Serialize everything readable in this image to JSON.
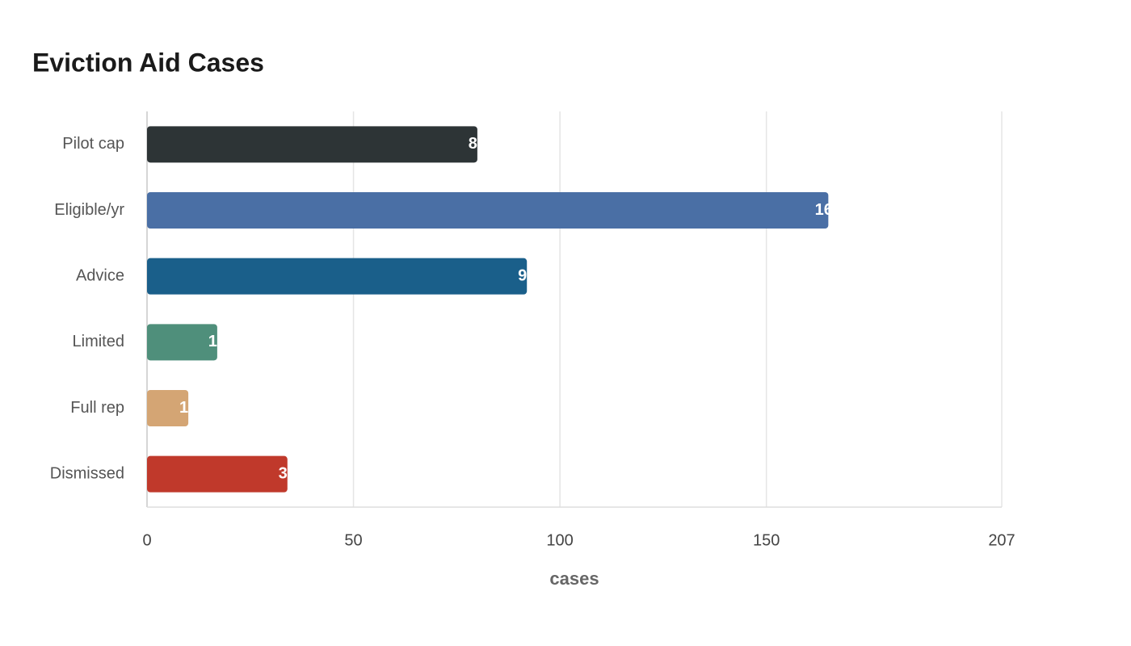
{
  "chart_data": {
    "type": "bar",
    "orientation": "horizontal",
    "title": "Eviction Aid Cases",
    "categories": [
      "Pilot cap",
      "Eligible/yr",
      "Advice",
      "Limited",
      "Full rep",
      "Dismissed"
    ],
    "values": [
      80,
      165,
      92,
      17,
      10,
      34
    ],
    "colors": [
      "#2d3436",
      "#4a6fa5",
      "#1a5f8a",
      "#4f8f7b",
      "#d4a574",
      "#c0392b"
    ],
    "xlabel": "cases",
    "xlim": [
      0,
      207
    ],
    "xticks": [
      0,
      50,
      100,
      150,
      207
    ],
    "grid": true
  }
}
